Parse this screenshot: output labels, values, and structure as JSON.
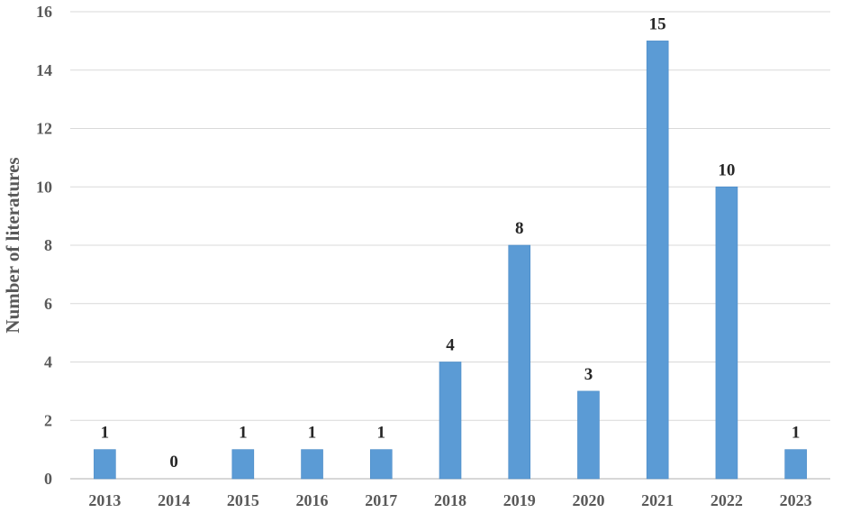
{
  "chart_data": {
    "type": "bar",
    "categories": [
      "2013",
      "2014",
      "2015",
      "2016",
      "2017",
      "2018",
      "2019",
      "2020",
      "2021",
      "2022",
      "2023"
    ],
    "values": [
      1,
      0,
      1,
      1,
      1,
      4,
      8,
      3,
      15,
      10,
      1
    ],
    "data_labels": [
      "1",
      "0",
      "1",
      "1",
      "1",
      "4",
      "8",
      "3",
      "15",
      "10",
      "1"
    ],
    "title": "",
    "xlabel": "",
    "ylabel": "Number of literatures",
    "ylim": [
      0,
      16
    ],
    "yticks": [
      0,
      2,
      4,
      6,
      8,
      10,
      12,
      14,
      16
    ],
    "ytick_labels": [
      "0",
      "2",
      "4",
      "6",
      "8",
      "10",
      "12",
      "14",
      "16"
    ],
    "grid": "horizontal",
    "legend": "none",
    "bar_color": "#5b9bd5"
  }
}
